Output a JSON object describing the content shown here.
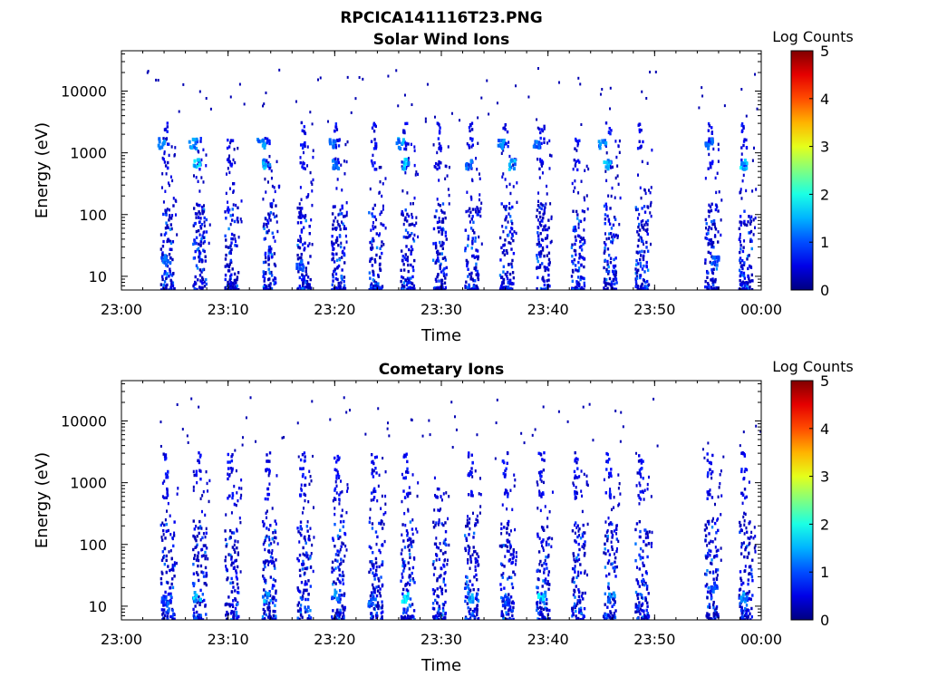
{
  "figure": {
    "title": "RPCICA141116T23.PNG"
  },
  "chart_data": [
    {
      "type": "heatmap",
      "title": "Solar Wind Ions",
      "xlabel": "Time",
      "ylabel": "Energy (eV)",
      "yscale": "log",
      "x_ticks": [
        "23:00",
        "23:10",
        "23:20",
        "23:30",
        "23:40",
        "23:50",
        "00:00"
      ],
      "y_ticks": [
        "10",
        "100",
        "1000",
        "10000"
      ],
      "xlim": [
        "23:00",
        "00:00"
      ],
      "ylim": [
        6,
        45000
      ],
      "colorbar": {
        "label": "Log Counts",
        "ticks": [
          "0",
          "1",
          "2",
          "3",
          "4",
          "5"
        ],
        "range": [
          0,
          5
        ],
        "colormap": "jet"
      },
      "measurement_times_min": [
        4,
        7,
        10,
        13.5,
        16.8,
        20,
        23.5,
        26.5,
        29.5,
        32.5,
        35.8,
        39.2,
        42.5,
        45.5,
        48.5,
        55,
        58.2
      ],
      "bursts": [
        {
          "t": 7,
          "e": 650,
          "v": 2.0
        },
        {
          "t": 13.5,
          "e": 650,
          "v": 1.8
        },
        {
          "t": 26.5,
          "e": 650,
          "v": 1.9
        },
        {
          "t": 20,
          "e": 650,
          "v": 1.6
        },
        {
          "t": 32.5,
          "e": 650,
          "v": 1.5
        },
        {
          "t": 36.5,
          "e": 650,
          "v": 1.7
        },
        {
          "t": 45.5,
          "e": 650,
          "v": 1.7
        },
        {
          "t": 58.3,
          "e": 650,
          "v": 1.9
        },
        {
          "t": 3.7,
          "e": 1400,
          "v": 1.5
        },
        {
          "t": 6.6,
          "e": 1400,
          "v": 1.6
        },
        {
          "t": 13,
          "e": 1400,
          "v": 1.5
        },
        {
          "t": 19.6,
          "e": 1400,
          "v": 1.5
        },
        {
          "t": 26,
          "e": 1400,
          "v": 1.6
        },
        {
          "t": 35.5,
          "e": 1400,
          "v": 1.5
        },
        {
          "t": 38.8,
          "e": 1400,
          "v": 1.4
        },
        {
          "t": 45,
          "e": 1400,
          "v": 1.5
        },
        {
          "t": 55,
          "e": 1400,
          "v": 1.3
        },
        {
          "t": 4,
          "e": 18,
          "v": 1.3
        },
        {
          "t": 16.6,
          "e": 15,
          "v": 1.2
        },
        {
          "t": 55.6,
          "e": 18,
          "v": 1.4
        }
      ]
    },
    {
      "type": "heatmap",
      "title": "Cometary Ions",
      "xlabel": "Time",
      "ylabel": "Energy (eV)",
      "yscale": "log",
      "x_ticks": [
        "23:00",
        "23:10",
        "23:20",
        "23:30",
        "23:40",
        "23:50",
        "00:00"
      ],
      "y_ticks": [
        "10",
        "100",
        "1000",
        "10000"
      ],
      "xlim": [
        "23:00",
        "00:00"
      ],
      "ylim": [
        6,
        45000
      ],
      "colorbar": {
        "label": "Log Counts",
        "ticks": [
          "0",
          "1",
          "2",
          "3",
          "4",
          "5"
        ],
        "range": [
          0,
          5
        ],
        "colormap": "jet"
      },
      "measurement_times_min": [
        4,
        7,
        10,
        13.5,
        16.8,
        20,
        23.5,
        26.5,
        29.5,
        32.5,
        35.8,
        39.2,
        42.5,
        45.5,
        48.5,
        55,
        58.2
      ],
      "bursts": [
        {
          "t": 7,
          "e": 14,
          "v": 1.9
        },
        {
          "t": 13.5,
          "e": 14,
          "v": 1.7
        },
        {
          "t": 20,
          "e": 14,
          "v": 1.5
        },
        {
          "t": 26.5,
          "e": 14,
          "v": 2.0
        },
        {
          "t": 32.5,
          "e": 14,
          "v": 1.6
        },
        {
          "t": 39.3,
          "e": 14,
          "v": 1.9
        },
        {
          "t": 45.8,
          "e": 14,
          "v": 1.5
        },
        {
          "t": 58.2,
          "e": 14,
          "v": 1.6
        },
        {
          "t": 4,
          "e": 12,
          "v": 1.2
        },
        {
          "t": 23.4,
          "e": 12,
          "v": 1.3
        },
        {
          "t": 36,
          "e": 12,
          "v": 1.2
        },
        {
          "t": 55.5,
          "e": 20,
          "v": 1.2
        }
      ]
    }
  ]
}
